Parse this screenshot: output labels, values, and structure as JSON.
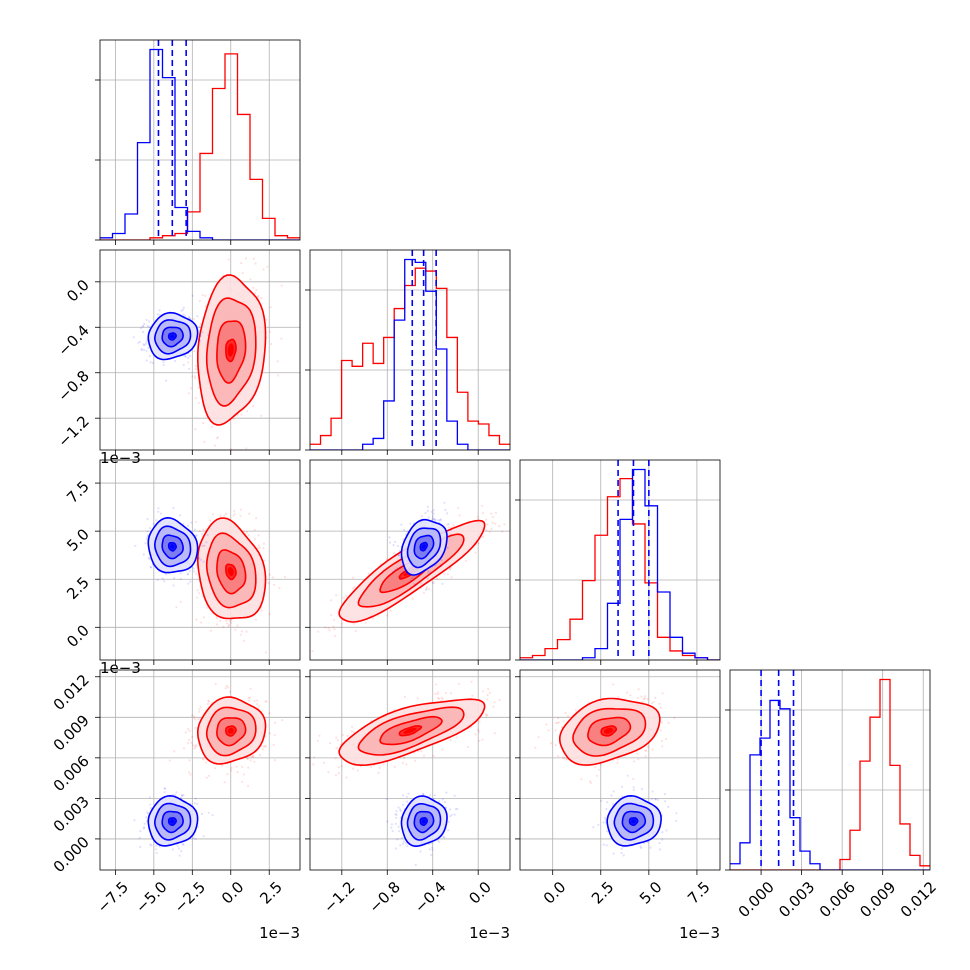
{
  "chart_data": {
    "type": "corner",
    "grid": true,
    "series": [
      {
        "name": "",
        "color": "#ff0000"
      },
      {
        "name": "",
        "color": "#0000ff"
      }
    ],
    "parameters": [
      {
        "range": [
          -0.0085,
          0.0045
        ],
        "ticks": [
          -0.0075,
          -0.005,
          -0.0025,
          0.0,
          0.0025
        ],
        "tick_labels": [
          "−7.5",
          "−5.0",
          "−2.5",
          "0.0",
          "2.5"
        ],
        "offset_label": "1e−3",
        "means": {
          "red": 0.0,
          "blue": -0.0038
        },
        "sds": {
          "red": 0.0011,
          "blue": 0.0008
        },
        "quantiles_blue": [
          -0.0047,
          -0.0038,
          -0.0029
        ],
        "hist_red": [
          0,
          0,
          0,
          0,
          1,
          2,
          3,
          13,
          40,
          70,
          86,
          58,
          28,
          10,
          2,
          1
        ],
        "hist_blue": [
          1,
          3,
          12,
          45,
          88,
          75,
          15,
          4,
          1,
          0,
          0,
          0,
          0,
          0,
          0,
          0
        ]
      },
      {
        "range": [
          -0.00148,
          0.00028
        ],
        "ticks": [
          -0.0012,
          -0.0008,
          -0.0004,
          0.0
        ],
        "tick_labels": [
          "−1.2",
          "−0.8",
          "−0.4",
          "0.0"
        ],
        "offset_label": "1e−3",
        "means": {
          "red": -0.0006,
          "blue": -0.00048
        },
        "sds": {
          "red": 0.00032,
          "blue": 0.0001
        },
        "quantiles_blue": [
          -0.00058,
          -0.00048,
          -0.00037
        ],
        "hist_red": [
          2,
          5,
          11,
          31,
          29,
          37,
          30,
          39,
          49,
          57,
          63,
          62,
          56,
          39,
          20,
          10,
          9,
          5,
          2
        ],
        "hist_blue": [
          0,
          0,
          0,
          0,
          0,
          2,
          4,
          17,
          45,
          66,
          65,
          55,
          35,
          10,
          2,
          0,
          0,
          0,
          0
        ]
      },
      {
        "range": [
          -0.0017,
          0.0087
        ],
        "ticks": [
          0.0,
          0.0025,
          0.005,
          0.0075
        ],
        "tick_labels": [
          "0.0",
          "2.5",
          "5.0",
          "7.5"
        ],
        "offset_label": "1e−3",
        "means": {
          "red": 0.0029,
          "blue": 0.0042
        },
        "sds": {
          "red": 0.0013,
          "blue": 0.0007
        },
        "quantiles_blue": [
          0.0034,
          0.0042,
          0.005
        ],
        "hist_red": [
          1,
          2,
          5,
          9,
          18,
          35,
          55,
          72,
          80,
          60,
          34,
          10,
          4,
          2,
          1,
          0
        ],
        "hist_blue": [
          0,
          0,
          0,
          0,
          0,
          1,
          5,
          25,
          62,
          84,
          68,
          30,
          10,
          3,
          1,
          0
        ]
      },
      {
        "range": [
          -0.0023,
          0.0125
        ],
        "ticks": [
          0.0,
          0.003,
          0.006,
          0.009,
          0.012
        ],
        "tick_labels": [
          "0.000",
          "0.003",
          "0.006",
          "0.009",
          "0.012"
        ],
        "offset_label": "",
        "means": {
          "red": 0.008,
          "blue": 0.0013
        },
        "sds": {
          "red": 0.0012,
          "blue": 0.0009
        },
        "quantiles_blue": [
          0.0,
          0.0013,
          0.0024
        ],
        "hist_red": [
          0,
          0,
          0,
          0,
          0,
          0,
          0,
          0,
          0,
          0,
          0,
          5,
          19,
          52,
          73,
          91,
          50,
          22,
          7,
          2
        ],
        "hist_blue": [
          3,
          13,
          55,
          63,
          81,
          77,
          25,
          9,
          3,
          0,
          0,
          0,
          0,
          0,
          0,
          0,
          0,
          0,
          0,
          0
        ]
      }
    ],
    "correlations": {
      "red": [
        [
          1,
          0.15,
          -0.2,
          0.1
        ],
        [
          0.15,
          1,
          0.88,
          0.7
        ],
        [
          -0.2,
          0.88,
          1,
          0.3
        ],
        [
          0.1,
          0.7,
          0.3,
          1
        ]
      ],
      "blue": [
        [
          1,
          0.1,
          -0.1,
          0.05
        ],
        [
          0.1,
          1,
          0.3,
          0.1
        ],
        [
          -0.1,
          0.3,
          1,
          0.05
        ],
        [
          0.05,
          0.1,
          0.05,
          1
        ]
      ]
    }
  }
}
